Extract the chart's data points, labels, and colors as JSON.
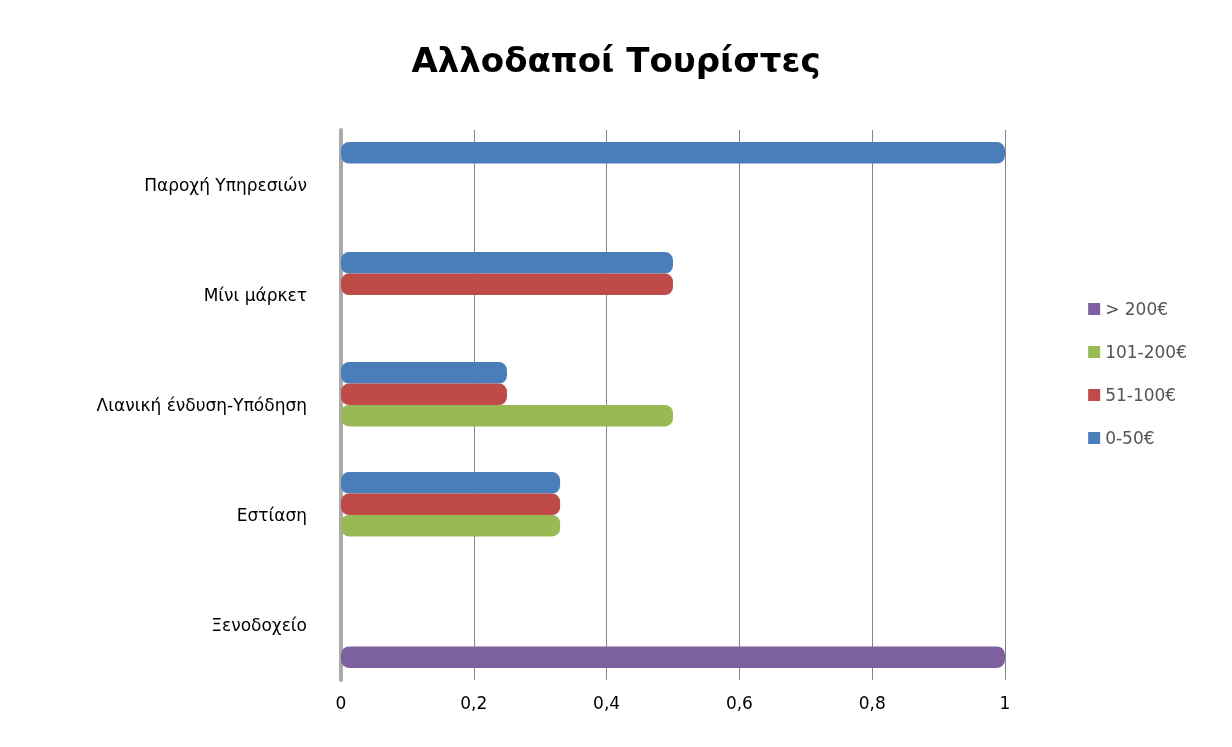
{
  "chart_data": {
    "type": "bar",
    "orientation": "horizontal",
    "title": "Αλλοδαποί Τουρίστες",
    "categories": [
      "Παροχή Υπηρεσιών",
      "Μίνι μάρκετ",
      "Λιανική ένδυση-Υπόδηση",
      "Εστίαση",
      "Ξενοδοχείο"
    ],
    "series": [
      {
        "name": "0-50€",
        "color": "#4a7ebb",
        "values": [
          1,
          0.5,
          0.25,
          0.33,
          null
        ]
      },
      {
        "name": "51-100€",
        "color": "#be4b48",
        "values": [
          null,
          0.5,
          0.25,
          0.33,
          null
        ]
      },
      {
        "name": "101-200€",
        "color": "#98b954",
        "values": [
          null,
          null,
          0.5,
          0.33,
          null
        ]
      },
      {
        "name": "> 200€",
        "color": "#7d60a0",
        "values": [
          null,
          null,
          null,
          null,
          1
        ]
      }
    ],
    "xlim": [
      0,
      1
    ],
    "xticks": [
      0,
      {
        "value": 0.2,
        "label": "0,2"
      },
      {
        "value": 0.4,
        "label": "0,4"
      },
      {
        "value": 0.6,
        "label": "0,6"
      },
      {
        "value": 0.8,
        "label": "0,8"
      },
      1
    ],
    "grid": "x",
    "legend": "right"
  }
}
